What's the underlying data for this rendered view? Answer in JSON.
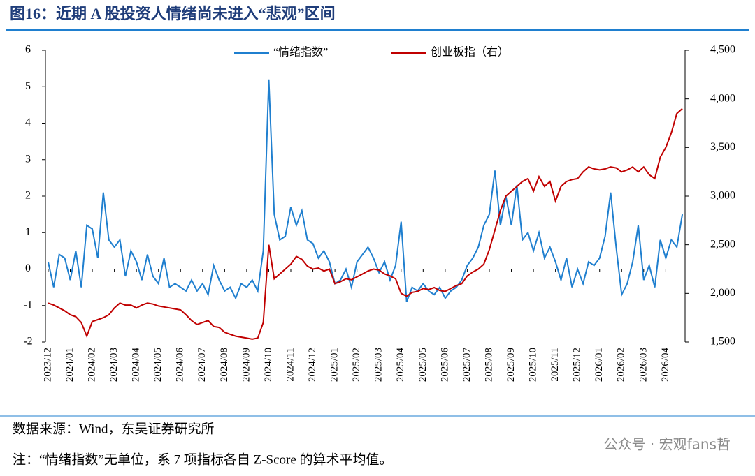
{
  "chart_data": {
    "type": "line",
    "title": "图16：近期 A 股投资人情绪尚未进入“悲观”区间",
    "source": "数据来源：Wind，东吴证券研究所",
    "note": "注：“情绪指数”无单位，系 7 项指标各自 Z-Score 的算术平均值。",
    "watermark": "公众号 · 宏观fans哲",
    "categories": [
      "2023/12",
      null,
      null,
      null,
      "2024/01",
      null,
      null,
      null,
      "2024/02",
      null,
      null,
      null,
      "2024/03",
      null,
      null,
      null,
      "2024/04",
      null,
      null,
      null,
      "2024/05",
      null,
      null,
      null,
      "2024/06",
      null,
      null,
      null,
      "2024/07",
      null,
      null,
      null,
      "2024/08",
      null,
      null,
      null,
      "2024/09",
      null,
      null,
      null,
      "2024/10",
      null,
      null,
      null,
      "2024/11",
      null,
      null,
      null,
      "2024/12",
      null,
      null,
      null,
      "2025/01",
      null,
      null,
      null,
      "2025/02",
      null,
      null,
      null,
      "2025/03",
      null,
      null,
      null,
      "2025/04",
      null,
      null,
      null,
      "2025/05",
      null,
      null,
      null,
      "2025/06",
      null,
      null,
      null,
      "2025/07",
      null,
      null,
      null,
      "2025/08",
      null,
      null,
      null,
      "2025/09",
      null,
      null,
      null,
      "2025/10",
      null,
      null,
      null,
      "2025/11",
      null,
      null,
      null,
      "2025/12",
      null,
      null,
      null,
      "2026/01",
      null,
      null,
      null,
      "2026/02",
      null,
      null,
      null,
      "2026/03",
      null,
      null,
      null,
      "2026/04",
      null,
      null,
      null
    ],
    "series": [
      {
        "name": "“情绪指数”",
        "color": "#1f7fcf",
        "values": [
          0.2,
          -0.5,
          0.4,
          0.3,
          -0.3,
          0.5,
          -0.5,
          1.2,
          1.1,
          0.3,
          2.1,
          0.8,
          0.6,
          0.8,
          -0.2,
          0.5,
          0.2,
          -0.3,
          0.4,
          -0.2,
          -0.4,
          0.3,
          -0.5,
          -0.4,
          -0.5,
          -0.6,
          -0.3,
          -0.6,
          -0.4,
          -0.7,
          0.1,
          -0.3,
          -0.6,
          -0.5,
          -0.8,
          -0.4,
          -0.5,
          -0.3,
          -0.6,
          0.5,
          5.2,
          1.5,
          0.8,
          0.9,
          1.7,
          1.2,
          1.6,
          0.8,
          0.7,
          0.3,
          0.5,
          0.2,
          -0.4,
          -0.3,
          0.0,
          -0.5,
          0.2,
          0.4,
          0.6,
          0.3,
          -0.1,
          0.2,
          -0.3,
          0.1,
          1.3,
          -0.9,
          -0.5,
          -0.6,
          -0.4,
          -0.6,
          -0.7,
          -0.5,
          -0.8,
          -0.6,
          -0.5,
          -0.3,
          0.1,
          0.3,
          0.6,
          1.2,
          1.5,
          2.7,
          1.2,
          2.0,
          1.2,
          2.3,
          0.8,
          1.0,
          0.5,
          1.0,
          0.3,
          0.6,
          0.2,
          -0.3,
          0.3,
          -0.5,
          0.0,
          -0.4,
          0.2,
          0.1,
          0.3,
          0.9,
          2.1,
          0.6,
          -0.7,
          -0.4,
          0.2,
          1.2,
          -0.3,
          0.1,
          -0.5,
          0.8,
          0.3,
          0.8,
          0.6,
          1.5
        ]
      },
      {
        "name": "创业板指（右）",
        "color": "#c00000",
        "axis": "y2",
        "values": [
          1900,
          1880,
          1850,
          1820,
          1780,
          1760,
          1700,
          1560,
          1710,
          1730,
          1750,
          1780,
          1850,
          1900,
          1880,
          1880,
          1850,
          1880,
          1900,
          1890,
          1870,
          1860,
          1850,
          1840,
          1830,
          1780,
          1720,
          1680,
          1700,
          1720,
          1660,
          1650,
          1600,
          1580,
          1560,
          1550,
          1540,
          1530,
          1540,
          1700,
          2500,
          2150,
          2200,
          2250,
          2300,
          2380,
          2350,
          2280,
          2250,
          2260,
          2230,
          2250,
          2100,
          2120,
          2150,
          2140,
          2170,
          2200,
          2230,
          2250,
          2240,
          2200,
          2180,
          2150,
          2000,
          1970,
          2010,
          2020,
          2050,
          2040,
          2060,
          2030,
          2020,
          2050,
          2080,
          2100,
          2180,
          2220,
          2250,
          2300,
          2450,
          2650,
          2850,
          3000,
          3050,
          3100,
          3150,
          3180,
          3050,
          3200,
          3100,
          3150,
          2950,
          3100,
          3150,
          3170,
          3180,
          3250,
          3300,
          3280,
          3270,
          3280,
          3300,
          3290,
          3250,
          3270,
          3300,
          3250,
          3300,
          3220,
          3180,
          3400,
          3500,
          3650,
          3850,
          3900
        ]
      }
    ],
    "ylim": [
      -2,
      6
    ],
    "yticks": [
      -2,
      -1,
      0,
      1,
      2,
      3,
      4,
      5,
      6
    ],
    "y2lim": [
      1500,
      4500
    ],
    "y2ticks": [
      {
        "value": 1500,
        "label": "1,500"
      },
      {
        "value": 2000,
        "label": "2,000"
      },
      {
        "value": 2500,
        "label": "2,500"
      },
      {
        "value": 3000,
        "label": "3,000"
      },
      {
        "value": 3500,
        "label": "3,500"
      },
      {
        "value": 4000,
        "label": "4,000"
      },
      {
        "value": 4500,
        "label": "4,500"
      }
    ],
    "grid": false
  }
}
